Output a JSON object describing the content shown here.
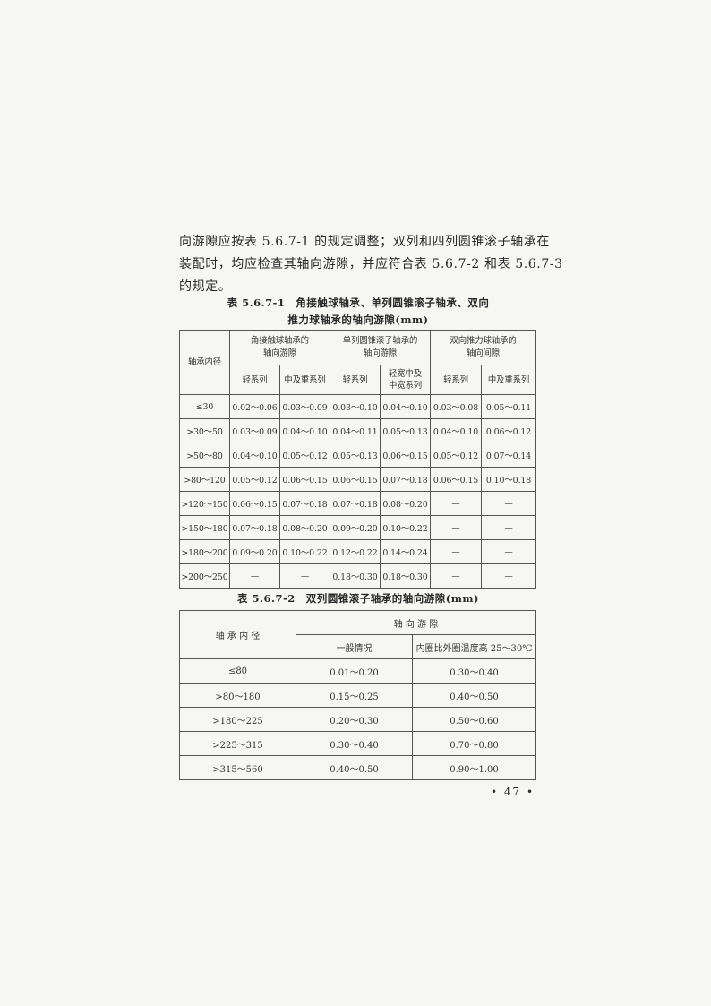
{
  "paragraph": [
    "向游隙应按表 5.6.7-1 的规定调整；双列和四列圆锥滚子轴承在",
    "装配时，均应检查其轴向游隙，并应符合表 5.6.7-2 和表 5.6.7-3",
    "的规定。"
  ],
  "table1": {
    "caption_line1": "表 5.6.7-1　角接触球轴承、单列圆锥滚子轴承、双向",
    "caption_line2": "推力球轴承的轴向游隙(mm)",
    "row_header": "轴承内径",
    "groups": [
      "角接触球轴承的\n轴向游隙",
      "单列圆锥滚子轴承的\n轴向游隙",
      "双向推力球轴承的\n轴向间隙"
    ],
    "subheaders": [
      "轻系列",
      "中及重系列",
      "轻系列",
      "轻宽中及\n中宽系列",
      "轻系列",
      "中及重系列"
    ],
    "rows": [
      [
        "≤30",
        "0.02～0.06",
        "0.03～0.09",
        "0.03～0.10",
        "0.04～0.10",
        "0.03～0.08",
        "0.05～0.11"
      ],
      [
        ">30～50",
        "0.03～0.09",
        "0.04～0.10",
        "0.04～0.11",
        "0.05～0.13",
        "0.04～0.10",
        "0.06～0.12"
      ],
      [
        ">50～80",
        "0.04～0.10",
        "0.05～0.12",
        "0.05～0.13",
        "0.06～0.15",
        "0.05～0.12",
        "0.07～0.14"
      ],
      [
        ">80～120",
        "0.05～0.12",
        "0.06～0.15",
        "0.06～0.15",
        "0.07～0.18",
        "0.06～0.15",
        "0.10～0.18"
      ],
      [
        ">120～150",
        "0.06～0.15",
        "0.07～0.18",
        "0.07～0.18",
        "0.08～0.20",
        "—",
        "—"
      ],
      [
        ">150～180",
        "0.07～0.18",
        "0.08～0.20",
        "0.09～0.20",
        "0.10～0.22",
        "—",
        "—"
      ],
      [
        ">180～200",
        "0.09～0.20",
        "0.10～0.22",
        "0.12～0.22",
        "0.14～0.24",
        "—",
        "—"
      ],
      [
        ">200～250",
        "—",
        "—",
        "0.18～0.30",
        "0.18～0.30",
        "—",
        "—"
      ]
    ]
  },
  "table2": {
    "caption": "表 5.6.7-2　双列圆锥滚子轴承的轴向游隙(mm)",
    "row_header": "轴 承 内 径",
    "group": "轴 向 游 隙",
    "subheaders": [
      "一般情况",
      "内圈比外圈温度高 25～30℃"
    ],
    "rows": [
      [
        "≤80",
        "0.01～0.20",
        "0.30～0.40"
      ],
      [
        ">80～180",
        "0.15～0.25",
        "0.40～0.50"
      ],
      [
        ">180～225",
        "0.20～0.30",
        "0.50～0.60"
      ],
      [
        ">225～315",
        "0.30～0.40",
        "0.70～0.80"
      ],
      [
        ">315～560",
        "0.40～0.50",
        "0.90～1.00"
      ]
    ]
  },
  "page_number": "• 47 •"
}
